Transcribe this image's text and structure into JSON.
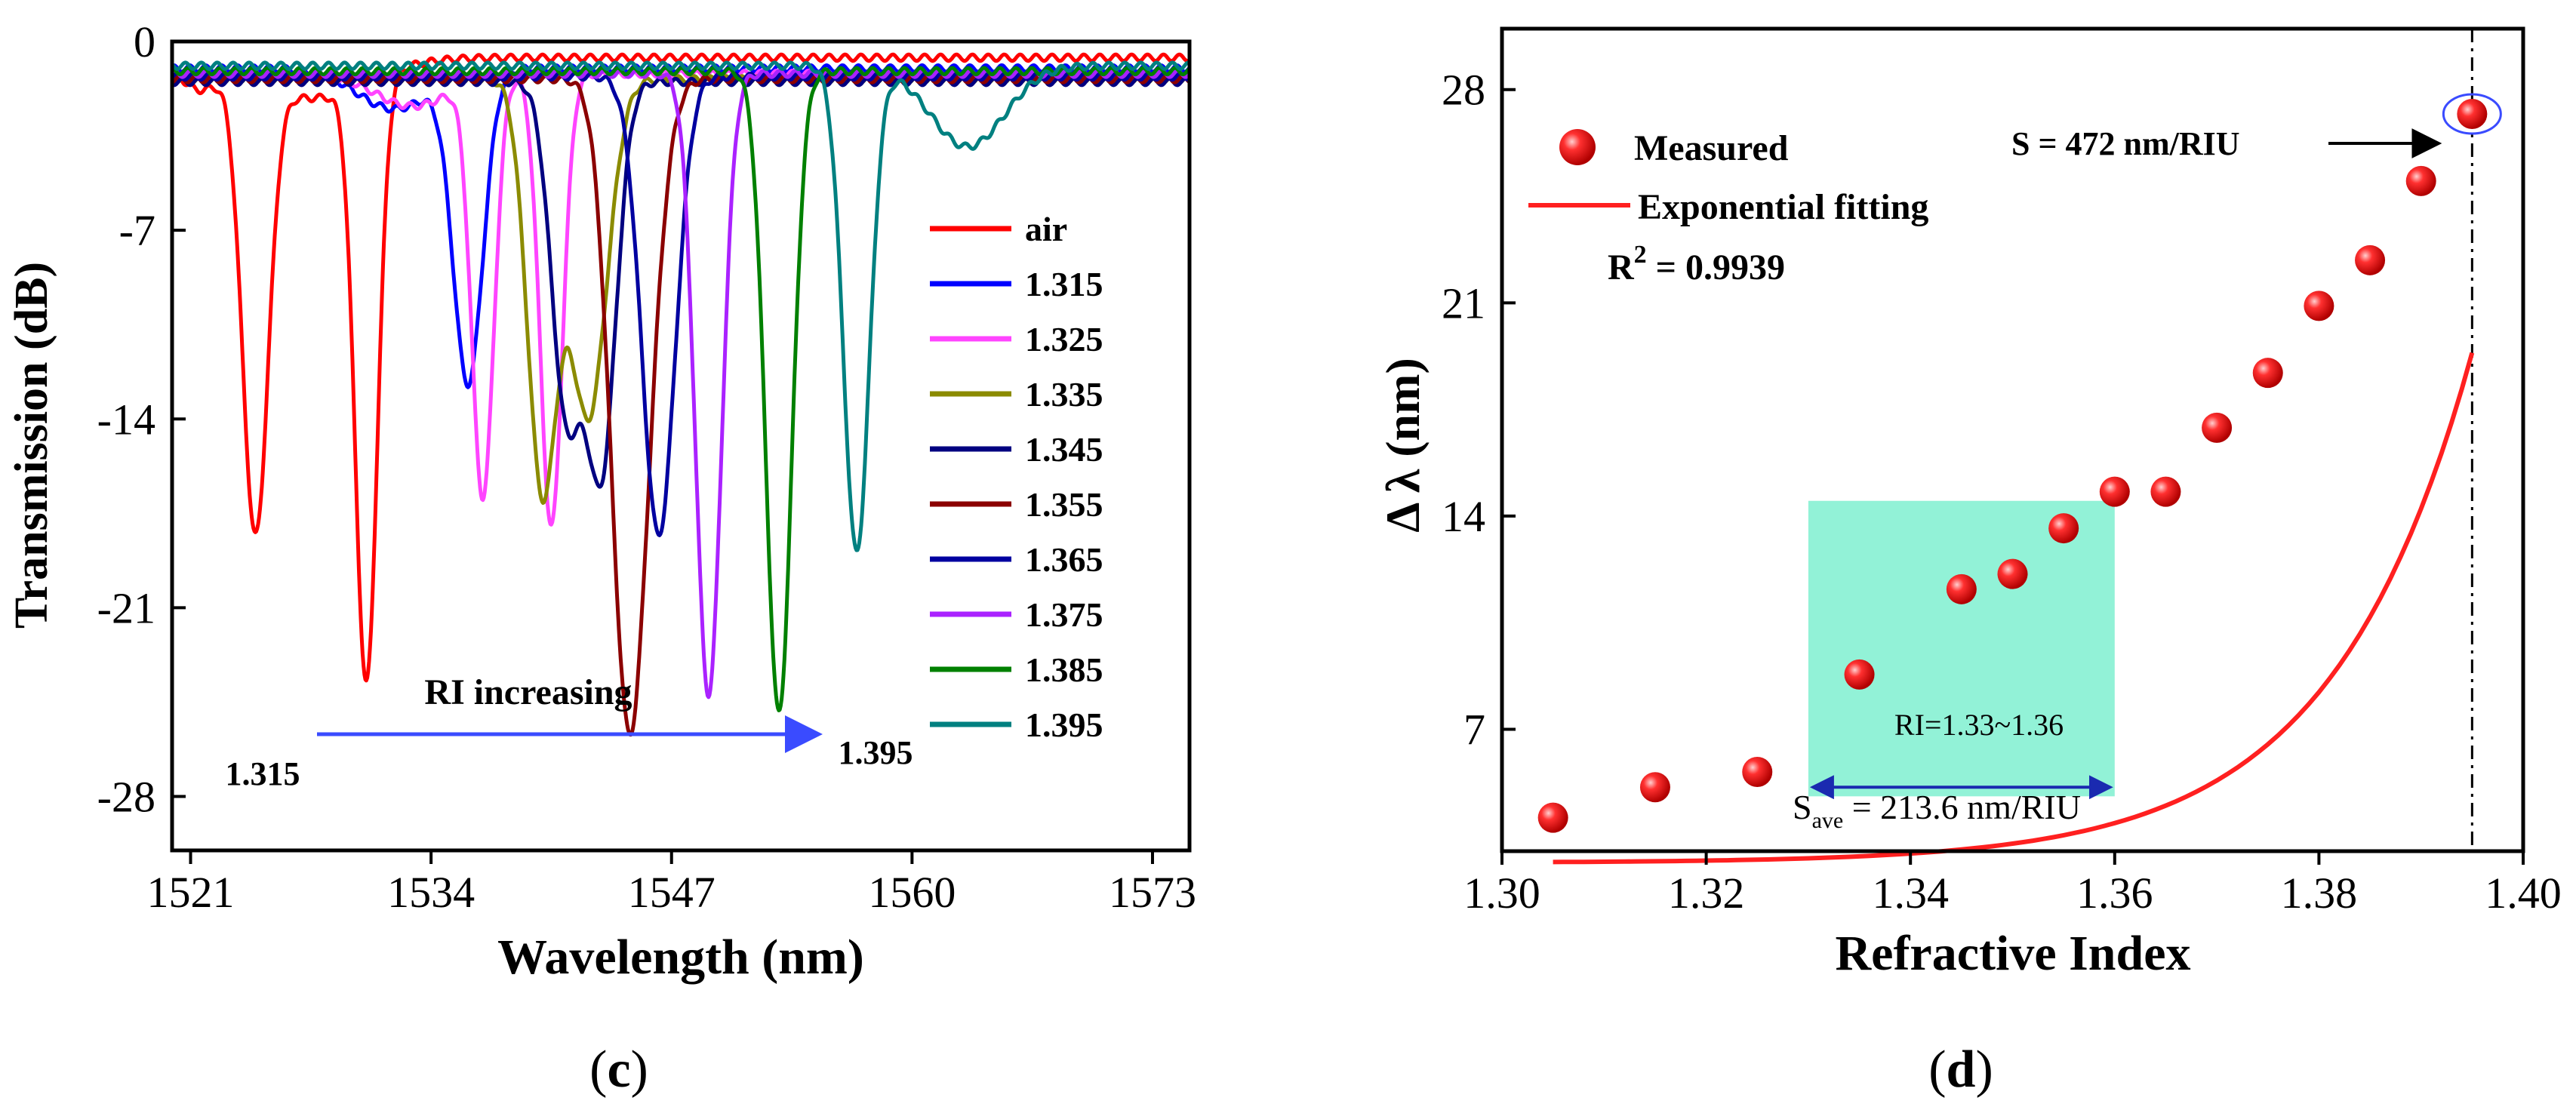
{
  "chart_data": [
    {
      "type": "line",
      "panel_label": "(c)",
      "xlabel": "Wavelength (nm)",
      "ylabel": "Transmission (dB)",
      "xlim": [
        1520,
        1575
      ],
      "ylim": [
        -30,
        0
      ],
      "xticks": [
        1521,
        1534,
        1547,
        1560,
        1573
      ],
      "yticks": [
        0,
        -7,
        -14,
        -21,
        -28
      ],
      "legend_position": "right",
      "annotation": "RI increasing",
      "arrow_start_label": "1.315",
      "arrow_end_label": "1.395",
      "series": [
        {
          "name": "air",
          "color": "#ff0000",
          "baseline": -0.6,
          "dips": [
            {
              "x": 1521.4,
              "depth": -1.0,
              "w": 1.0
            },
            {
              "x": 1524.5,
              "depth": -16.8,
              "w": 0.7
            },
            {
              "x": 1530.5,
              "depth": -22.3,
              "w": 0.6
            },
            {
              "x": 1527.5,
              "depth": -1.5,
              "w": 3.0
            }
          ]
        },
        {
          "name": "1.315",
          "color": "#0000ff",
          "baseline": -1.0,
          "dips": [
            {
              "x": 1536.0,
              "depth": -11.5,
              "w": 0.8
            },
            {
              "x": 1532.0,
              "depth": -1.5,
              "w": 2.0
            }
          ]
        },
        {
          "name": "1.325",
          "color": "#ff44ff",
          "baseline": -1.2,
          "dips": [
            {
              "x": 1536.8,
              "depth": -15.5,
              "w": 0.6
            },
            {
              "x": 1540.5,
              "depth": -16.8,
              "w": 0.6
            },
            {
              "x": 1533.0,
              "depth": -1.2,
              "w": 2.0
            }
          ]
        },
        {
          "name": "1.335",
          "color": "#8b8b00",
          "baseline": -1.4,
          "dips": [
            {
              "x": 1540.0,
              "depth": -15.0,
              "w": 0.8
            },
            {
              "x": 1542.5,
              "depth": -12.5,
              "w": 1.0
            }
          ]
        },
        {
          "name": "1.345",
          "color": "#000080",
          "baseline": -1.5,
          "dips": [
            {
              "x": 1541.3,
              "depth": -12.0,
              "w": 0.8
            },
            {
              "x": 1543.2,
              "depth": -14.2,
              "w": 0.8
            }
          ]
        },
        {
          "name": "1.355",
          "color": "#8b0000",
          "baseline": -1.4,
          "dips": [
            {
              "x": 1544.5,
              "depth": -16.3,
              "w": 0.9
            },
            {
              "x": 1545.3,
              "depth": -10.0,
              "w": 1.0
            }
          ]
        },
        {
          "name": "1.365",
          "color": "#0000a0",
          "baseline": -1.3,
          "dips": [
            {
              "x": 1546.3,
              "depth": -17.0,
              "w": 0.9
            }
          ]
        },
        {
          "name": "1.375",
          "color": "#aa22ff",
          "baseline": -1.2,
          "dips": [
            {
              "x": 1549.0,
              "depth": -23.0,
              "w": 0.7
            }
          ]
        },
        {
          "name": "1.385",
          "color": "#008000",
          "baseline": -1.1,
          "dips": [
            {
              "x": 1552.8,
              "depth": -23.8,
              "w": 0.7
            }
          ]
        },
        {
          "name": "1.395",
          "color": "#008080",
          "baseline": -0.9,
          "dips": [
            {
              "x": 1557.0,
              "depth": -18.0,
              "w": 0.7
            },
            {
              "x": 1563.0,
              "depth": -3.0,
              "w": 2.0
            }
          ]
        }
      ]
    },
    {
      "type": "scatter",
      "panel_label": "(d)",
      "xlabel": "Refractive Index",
      "ylabel": "Δ λ (nm)",
      "xlim": [
        1.3,
        1.4
      ],
      "ylim": [
        3,
        30
      ],
      "xticks": [
        1.3,
        1.32,
        1.34,
        1.36,
        1.38,
        1.4
      ],
      "xtick_labels": [
        "1.30",
        "1.32",
        "1.34",
        "1.36",
        "1.38",
        "1.40"
      ],
      "yticks": [
        7,
        14,
        21,
        28
      ],
      "legend_position": "top-left",
      "series": [
        {
          "name": "Measured",
          "color": "#ff2020",
          "points": [
            {
              "x": 1.305,
              "y": 4.1
            },
            {
              "x": 1.315,
              "y": 5.1
            },
            {
              "x": 1.325,
              "y": 5.6
            },
            {
              "x": 1.335,
              "y": 8.8
            },
            {
              "x": 1.345,
              "y": 11.6
            },
            {
              "x": 1.35,
              "y": 12.1
            },
            {
              "x": 1.355,
              "y": 13.6
            },
            {
              "x": 1.36,
              "y": 14.8
            },
            {
              "x": 1.365,
              "y": 14.8
            },
            {
              "x": 1.37,
              "y": 16.9
            },
            {
              "x": 1.375,
              "y": 18.7
            },
            {
              "x": 1.38,
              "y": 20.9
            },
            {
              "x": 1.385,
              "y": 22.4
            },
            {
              "x": 1.39,
              "y": 25.0
            },
            {
              "x": 1.395,
              "y": 27.2
            }
          ]
        },
        {
          "name": "Exponential fitting",
          "color": "#ff2020",
          "fit": {
            "y0": 2.62,
            "A": 0.0163,
            "t": 0.0137
          }
        }
      ],
      "r_squared_label": "R",
      "r_squared_sup": "2",
      "r_squared_value": " = 0.9939",
      "sensitivity_label": "S = 472 nm/RIU",
      "range_label": "RI=1.33~1.36",
      "range": [
        1.33,
        1.36
      ],
      "vline_x": 1.395,
      "avg_sensitivity_prefix": "S",
      "avg_sensitivity_sub": "ave",
      "avg_sensitivity_suffix": " = 213.6 nm/RIU",
      "range_fill_color": "#7ff0d0"
    }
  ]
}
